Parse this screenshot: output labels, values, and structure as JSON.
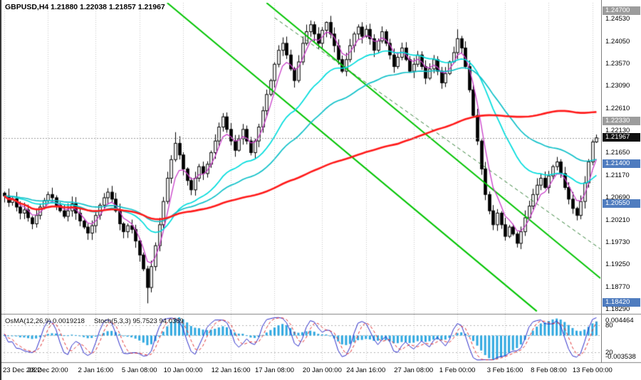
{
  "header": {
    "symbol_line": "GBPUSD,H4 1.21880 1.22038 1.21857 1.21967"
  },
  "indicator_labels": {
    "osma": "OsMA(12,26,9) 0.0019218",
    "stoch": "Stoch(5,3,3) 95.7523 94.0369"
  },
  "colors": {
    "background": "#ffffff",
    "grid": "#c4c4c4",
    "candle_border": "#000000",
    "bull": "#ffffff",
    "bear": "#000000",
    "ma_fast": "#c73bc7",
    "ma_mid": "#00dcdc",
    "ma_mid2": "#10c0c8",
    "ma_slow": "#ff1a1a",
    "trend_green": "#00c400",
    "trend_dashed": "#2e7d32",
    "osma": "#2fa8e0",
    "stoch_k": "#2929c8",
    "stoch_d": "#e03030",
    "level_line": "#b0b0b0",
    "current_line": "#999999",
    "divider": "#808080",
    "badge_support": "#4f7cbf",
    "badge_resistance": "#9c9c9c",
    "badge_current": "#101010",
    "axis_text": "#000000"
  },
  "chart_data": {
    "type": "candlestick",
    "symbol": "GBPUSD",
    "timeframe": "H4",
    "current_bar": {
      "open": "1.21880",
      "high": "1.22038",
      "low": "1.21857",
      "close": "1.21967"
    },
    "current_price": 1.21967,
    "price_range": {
      "top": 1.2487,
      "bottom": 1.182
    },
    "closes": [
      1.2072,
      1.2058,
      1.2066,
      1.2048,
      1.2035,
      1.2042,
      1.2025,
      1.2012,
      1.203,
      1.2048,
      1.2062,
      1.2075,
      1.2068,
      1.2052,
      1.204,
      1.2028,
      1.204,
      1.2055,
      1.2035,
      1.2018,
      1.2005,
      1.1992,
      1.2008,
      1.203,
      1.2052,
      1.2068,
      1.208,
      1.2065,
      1.204,
      1.2012,
      1.1995,
      1.2008,
      1.2,
      1.1975,
      1.1945,
      1.1915,
      1.1875,
      1.192,
      1.1965,
      1.201,
      1.206,
      1.211,
      1.215,
      1.2185,
      1.216,
      1.213,
      1.2105,
      1.2085,
      1.211,
      1.2135,
      1.212,
      1.214,
      1.2165,
      1.219,
      1.222,
      1.2242,
      1.2215,
      1.219,
      1.217,
      1.2195,
      1.2215,
      1.219,
      1.2165,
      1.219,
      1.222,
      1.2255,
      1.229,
      1.232,
      1.2355,
      1.2385,
      1.24,
      1.2375,
      1.2345,
      1.232,
      1.236,
      1.24,
      1.2425,
      1.244,
      1.242,
      1.24,
      1.2428,
      1.2445,
      1.242,
      1.2395,
      1.2365,
      1.234,
      1.2365,
      1.2395,
      1.242,
      1.2435,
      1.2415,
      1.243,
      1.241,
      1.2385,
      1.2405,
      1.2425,
      1.24,
      1.2375,
      1.235,
      1.237,
      1.239,
      1.2365,
      1.234,
      1.2355,
      1.2375,
      1.235,
      1.2325,
      1.2345,
      1.2365,
      1.234,
      1.2315,
      1.2335,
      1.236,
      1.238,
      1.241,
      1.239,
      1.235,
      1.23,
      1.2245,
      1.219,
      1.213,
      1.2075,
      1.204,
      1.201,
      1.2035,
      1.201,
      1.1985,
      1.2005,
      1.199,
      1.197,
      1.1995,
      1.2025,
      1.205,
      1.2075,
      1.2095,
      1.211,
      1.209,
      1.2115,
      1.2135,
      1.2145,
      1.212,
      1.209,
      1.2065,
      1.2045,
      1.203,
      1.206,
      1.21,
      1.2145,
      1.2188,
      1.21967
    ],
    "overrides": {
      "36": {
        "low": 1.1841
      },
      "43": {
        "high": 1.2209
      },
      "55": {
        "high": 1.225
      },
      "81": {
        "high": 1.2447
      },
      "114": {
        "high": 1.243
      },
      "129": {
        "low": 1.1961
      },
      "149": {
        "high": 1.22038,
        "low": 1.21857
      }
    },
    "moving_averages": [
      {
        "name": "fast-ma",
        "period": 5,
        "method": "ema",
        "color_key": "ma_fast",
        "width": 1.3
      },
      {
        "name": "mid-ma",
        "period": 24,
        "method": "ema",
        "color_key": "ma_mid",
        "width": 1.7
      },
      {
        "name": "mid-ma-2",
        "period": 45,
        "method": "ema",
        "color_key": "ma_mid2",
        "width": 1.7
      },
      {
        "name": "slow-ma",
        "period": 100,
        "method": "sma",
        "color_key": "ma_slow",
        "width": 2.6
      }
    ],
    "trendlines": [
      {
        "i1": 41,
        "p1": 1.2487,
        "i2": 134,
        "p2": 1.1824,
        "color_key": "trend_green",
        "width": 2,
        "dash": []
      },
      {
        "i1": 66,
        "p1": 1.2487,
        "i2": 150,
        "p2": 1.1895,
        "color_key": "trend_green",
        "width": 2,
        "dash": []
      },
      {
        "i1": 68,
        "p1": 1.2455,
        "i2": 150,
        "p2": 1.1958,
        "color_key": "trend_dashed",
        "width": 1,
        "dash": [
          5,
          4
        ]
      }
    ],
    "indicators": {
      "osma": {
        "params": [
          12,
          26,
          9
        ],
        "current": "0.0019218"
      },
      "stoch": {
        "params": [
          5,
          3,
          3
        ],
        "current_k": "95.7523",
        "current_d": "94.0369",
        "levels": [
          80,
          20
        ]
      }
    },
    "price_axis": {
      "ticks": [
        "1.24530",
        "1.24050",
        "1.23570",
        "1.23090",
        "1.22610",
        "1.22130",
        "1.21650",
        "1.21170",
        "1.20690",
        "1.20210",
        "1.19730",
        "1.19250",
        "1.18770",
        "1.18290"
      ],
      "badges": [
        {
          "label": "1.24700",
          "price": 1.247,
          "type": "resistance"
        },
        {
          "label": "1.22330",
          "price": 1.2233,
          "type": "resistance"
        },
        {
          "label": "1.21967",
          "price": 1.21967,
          "type": "current"
        },
        {
          "label": "1.21400",
          "price": 1.214,
          "type": "support"
        },
        {
          "label": "1.20550",
          "price": 1.2055,
          "type": "support"
        },
        {
          "label": "1.18420",
          "price": 1.1842,
          "type": "support"
        }
      ]
    },
    "time_axis": {
      "labels": [
        {
          "text": "23 Dec 2022",
          "index": 0
        },
        {
          "text": "28 Dec 20:00",
          "index": 11
        },
        {
          "text": "2 Jan 16:00",
          "index": 23
        },
        {
          "text": "5 Jan 08:00",
          "index": 34
        },
        {
          "text": "10 Jan 00:00",
          "index": 45
        },
        {
          "text": "12 Jan 16:00",
          "index": 57
        },
        {
          "text": "17 Jan 08:00",
          "index": 68
        },
        {
          "text": "20 Jan 00:00",
          "index": 80
        },
        {
          "text": "24 Jan 16:00",
          "index": 91
        },
        {
          "text": "27 Jan 08:00",
          "index": 103
        },
        {
          "text": "1 Feb 00:00",
          "index": 114
        },
        {
          "text": "3 Feb 16:00",
          "index": 126
        },
        {
          "text": "8 Feb 08:00",
          "index": 137
        },
        {
          "text": "13 Feb 00:00",
          "index": 148
        }
      ]
    },
    "indicator_axis": {
      "entries": [
        {
          "text": "0.004464",
          "anchor": "max"
        },
        {
          "text": "80",
          "anchor": "level",
          "value": 80
        },
        {
          "text": "20",
          "anchor": "level",
          "value": 20
        },
        {
          "text": "-0.003538",
          "anchor": "min"
        }
      ]
    }
  }
}
